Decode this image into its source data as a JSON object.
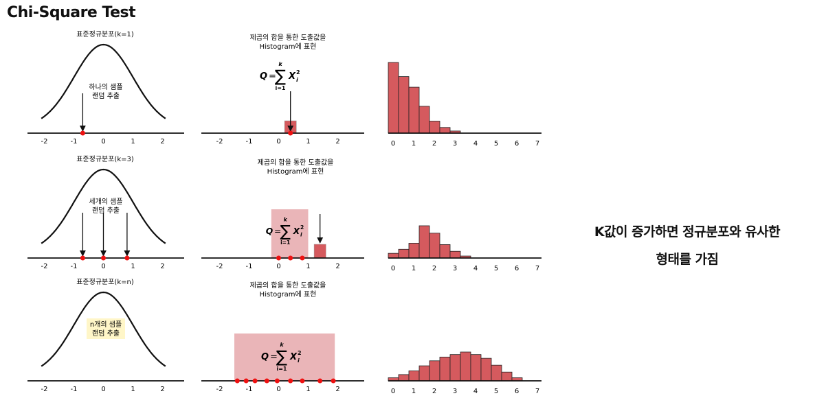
{
  "title": "Chi-Square Test",
  "rows": [
    {
      "dist_label": "표준정규분포(k=1)",
      "sample_text": [
        "하나의 샘플",
        "랜덤 추출"
      ],
      "highlight_sample": false,
      "sample_points": [
        -0.7
      ],
      "sum_caption": [
        "제곱의 합을 통한 도출값을",
        "Histogram에 표현"
      ],
      "sum_points": [
        0.4
      ],
      "bin": {
        "from": 0.2,
        "to": 0.6
      },
      "sum_region": null,
      "hist_counts": [
        100,
        80,
        65,
        38,
        17,
        8,
        3
      ],
      "hist_bin_width": 0.5
    },
    {
      "dist_label": "표준정규분포(k=3)",
      "sample_text": [
        "세개의 샘플",
        "랜덤 추출"
      ],
      "highlight_sample": false,
      "sample_points": [
        -0.7,
        0.0,
        0.8
      ],
      "sum_caption": [
        "제곱의 합을 통한 도출값을",
        "Histogram에 표현"
      ],
      "sum_points": [
        0.0,
        0.4,
        0.8
      ],
      "bin": {
        "from": 1.2,
        "to": 1.6
      },
      "sum_region": {
        "from": -0.25,
        "to": 1.0
      },
      "hist_counts": [
        7,
        13,
        22,
        48,
        37,
        20,
        10,
        3
      ],
      "hist_bin_width": 0.5
    },
    {
      "dist_label": "표준정규분포(k=n)",
      "sample_text": [
        "n개의 샘플",
        "랜덤 추출"
      ],
      "highlight_sample": true,
      "sample_points": [],
      "sum_caption": [
        "제곱의 합을 통한 도출값을",
        "Histogram에 표현"
      ],
      "sum_points": [
        -1.4,
        -1.1,
        -0.8,
        -0.4,
        -0.05,
        0.4,
        0.8,
        1.4,
        1.85
      ],
      "bin": null,
      "sum_region": {
        "from": -1.5,
        "to": 1.9
      },
      "hist_counts": [
        5,
        10,
        16,
        24,
        32,
        38,
        42,
        46,
        42,
        36,
        25,
        14,
        5
      ],
      "hist_bin_width": 0.5
    }
  ],
  "normal_ticks": [
    "-2",
    "-1",
    "0",
    "1",
    "2"
  ],
  "sum_ticks": [
    "-2",
    "-1",
    "0",
    "1",
    "2"
  ],
  "hist_ticks": [
    "0",
    "1",
    "2",
    "3",
    "4",
    "5",
    "6",
    "7"
  ],
  "formula": {
    "q": "Q",
    "eq": "=",
    "sum": "∑",
    "upper": "k",
    "lower": "i=1",
    "x": "X",
    "sup": "2",
    "sub": "i"
  },
  "conclusion": [
    "K값이 증가하면 정규분포와 유사한",
    "형태를 가짐"
  ],
  "colors": {
    "bar": "#d55a5e",
    "bar_stroke": "#222222",
    "region": "#eab5b8",
    "dot": "#ee1111",
    "highlight": "#fff6c8"
  }
}
